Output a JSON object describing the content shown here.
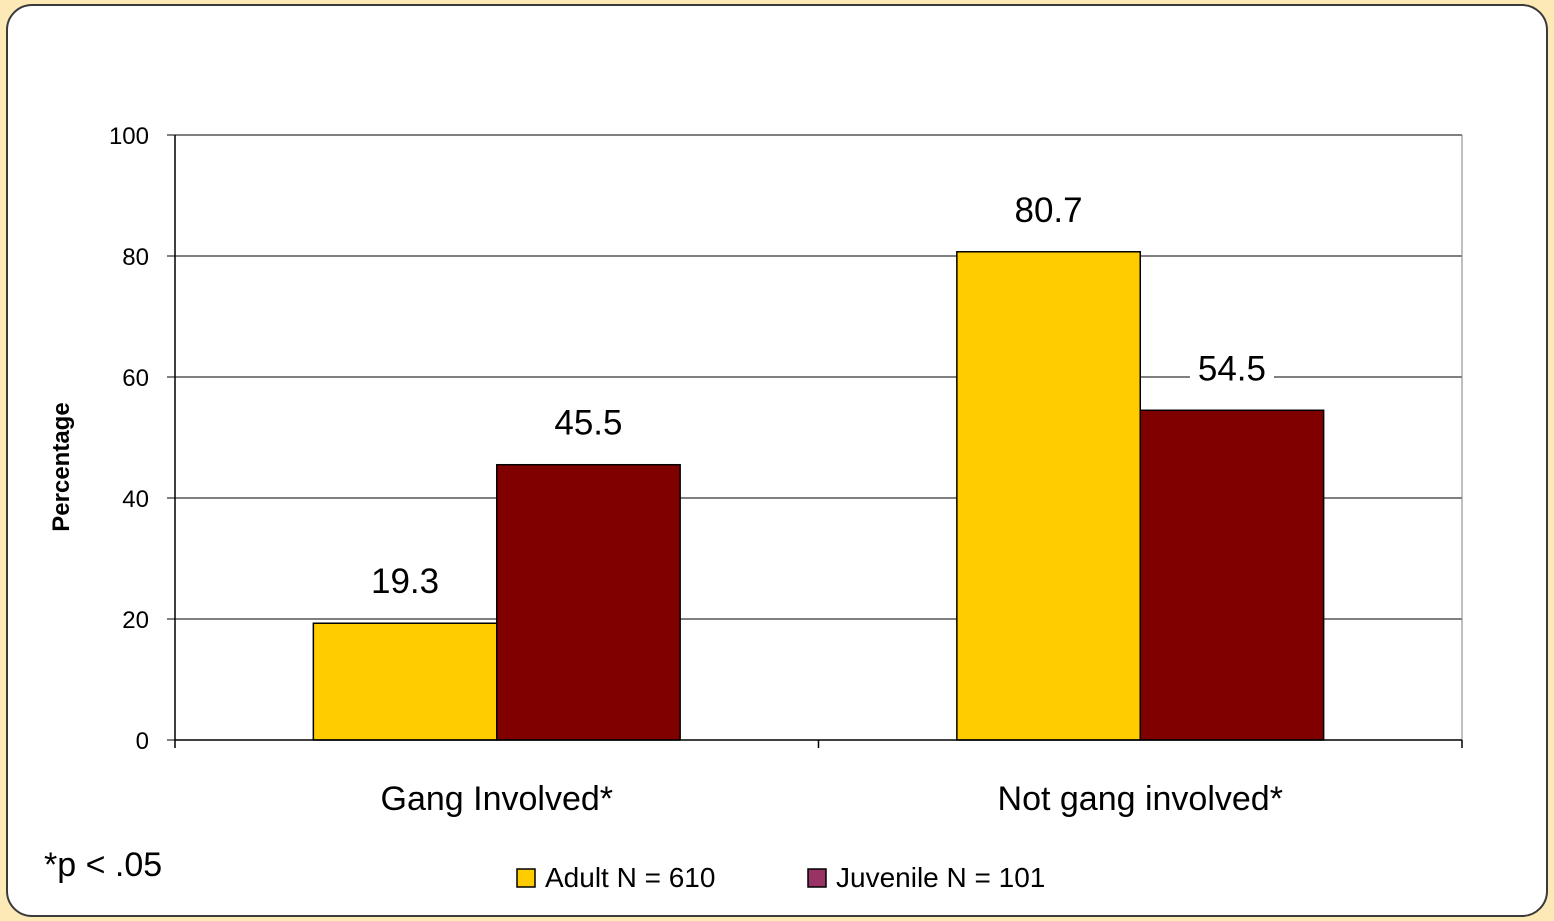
{
  "chart_data": {
    "type": "bar",
    "categories": [
      "Gang Involved*",
      "Not gang involved*"
    ],
    "series": [
      {
        "name": "Adult N = 610",
        "values": [
          19.3,
          80.7
        ],
        "color": "#ffcc00"
      },
      {
        "name": "Juvenile N = 101",
        "values": [
          45.5,
          54.5
        ],
        "color": "#800000"
      }
    ],
    "data_labels": [
      [
        "19.3",
        "80.7"
      ],
      [
        "45.5",
        "54.5"
      ]
    ],
    "title": "",
    "xlabel": "",
    "ylabel": "Percentage",
    "ylim": [
      0,
      100
    ],
    "yticks": [
      0,
      20,
      40,
      60,
      80,
      100
    ],
    "grid": true,
    "legend_position": "bottom",
    "legend_swatch_colors": [
      "#ffcc00",
      "#993366"
    ],
    "footnote": "*p < .05"
  }
}
